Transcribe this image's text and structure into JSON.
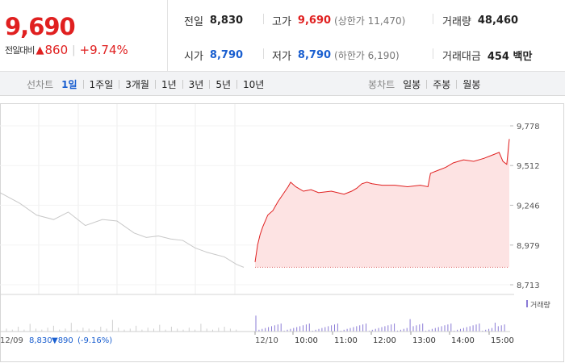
{
  "summary": {
    "price": "9,690",
    "change_label": "전일대비",
    "change_arrow": "▲",
    "change_value": "860",
    "change_pct": "+9.74%",
    "prev_close": {
      "label": "전일",
      "value": "8,830"
    },
    "open": {
      "label": "시가",
      "value": "8,790"
    },
    "high": {
      "label": "고가",
      "value": "9,690",
      "sub": "(상한가 11,470)"
    },
    "low": {
      "label": "저가",
      "value": "8,790",
      "sub": "(하한가 6,190)"
    },
    "volume": {
      "label": "거래량",
      "value": "48,460"
    },
    "amount": {
      "label": "거래대금",
      "value": "454 백만"
    }
  },
  "periods": {
    "line_title": "선차트",
    "line_items": [
      "1일",
      "1주일",
      "3개월",
      "1년",
      "3년",
      "5년",
      "10년"
    ],
    "active": "1일",
    "candle_title": "봉차트",
    "candle_items": [
      "일봉",
      "주봉",
      "월봉"
    ]
  },
  "colors": {
    "up": "#e02020",
    "down": "#1a5fd0",
    "prev_day_line": "#c8c8c8",
    "fill": "#fde3e3",
    "volume_bar": "#8a7bd6"
  },
  "chart_data": {
    "type": "area",
    "y_ticks": [
      "9,778",
      "9,512",
      "9,246",
      "8,979",
      "8,713"
    ],
    "y_tick_values": [
      9778,
      9512,
      9246,
      8979,
      8713
    ],
    "ylim": [
      8713,
      9778
    ],
    "x_ticks": [
      "10:00",
      "11:00",
      "12:00",
      "13:00",
      "14:00",
      "15:00"
    ],
    "prev_day_label": "12/09",
    "prev_day_close": "8,830",
    "prev_day_change_arrow": "▼",
    "prev_day_change": "890",
    "prev_day_change_pct": "(-9.16%)",
    "day_label": "12/10",
    "volume_legend": "거래량",
    "reference_value": 8830,
    "series": [
      {
        "values": [
          [
            0.0,
            9330
          ],
          [
            0.08,
            9260
          ],
          [
            0.15,
            9180
          ],
          [
            0.22,
            9150
          ],
          [
            0.28,
            9200
          ],
          [
            0.35,
            9110
          ],
          [
            0.42,
            9150
          ],
          [
            0.48,
            9140
          ],
          [
            0.55,
            9060
          ],
          [
            0.6,
            9030
          ],
          [
            0.65,
            9040
          ],
          [
            0.7,
            9020
          ],
          [
            0.75,
            9010
          ],
          [
            0.8,
            8960
          ],
          [
            0.85,
            8930
          ],
          [
            0.92,
            8900
          ],
          [
            0.97,
            8850
          ],
          [
            1.0,
            8830
          ]
        ]
      },
      {
        "values": [
          [
            0.0,
            8865
          ],
          [
            0.01,
            8980
          ],
          [
            0.02,
            9050
          ],
          [
            0.03,
            9100
          ],
          [
            0.05,
            9180
          ],
          [
            0.07,
            9210
          ],
          [
            0.09,
            9270
          ],
          [
            0.11,
            9320
          ],
          [
            0.13,
            9370
          ],
          [
            0.14,
            9400
          ],
          [
            0.16,
            9370
          ],
          [
            0.19,
            9340
          ],
          [
            0.22,
            9350
          ],
          [
            0.25,
            9330
          ],
          [
            0.3,
            9340
          ],
          [
            0.35,
            9320
          ],
          [
            0.38,
            9340
          ],
          [
            0.4,
            9360
          ],
          [
            0.42,
            9390
          ],
          [
            0.44,
            9400
          ],
          [
            0.46,
            9390
          ],
          [
            0.5,
            9380
          ],
          [
            0.55,
            9380
          ],
          [
            0.6,
            9370
          ],
          [
            0.65,
            9380
          ],
          [
            0.68,
            9370
          ],
          [
            0.69,
            9460
          ],
          [
            0.72,
            9480
          ],
          [
            0.75,
            9500
          ],
          [
            0.78,
            9530
          ],
          [
            0.82,
            9550
          ],
          [
            0.86,
            9540
          ],
          [
            0.9,
            9560
          ],
          [
            0.93,
            9580
          ],
          [
            0.96,
            9600
          ],
          [
            0.975,
            9540
          ],
          [
            0.99,
            9520
          ],
          [
            1.0,
            9690
          ]
        ]
      }
    ]
  }
}
